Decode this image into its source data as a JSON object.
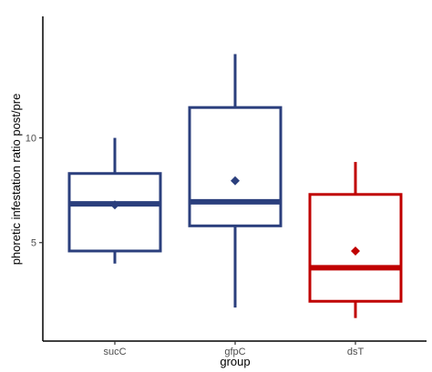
{
  "chart_data": {
    "type": "boxplot",
    "xlabel": "group",
    "ylabel": "phoretic infestation ratio post/pre",
    "categories": [
      "sucC",
      "gfpC",
      "dsT"
    ],
    "ylim": [
      0.3,
      15.8
    ],
    "yticks": [
      5,
      10
    ],
    "grid": false,
    "legend": "none",
    "boxes": [
      {
        "category": "sucC",
        "min": 4.0,
        "q1": 4.6,
        "median": 6.85,
        "q3": 8.3,
        "max": 10.0,
        "mean": 6.8,
        "color": "#2b3f7d"
      },
      {
        "category": "gfpC",
        "min": 1.9,
        "q1": 5.8,
        "median": 6.95,
        "q3": 11.45,
        "max": 14.0,
        "mean": 7.95,
        "color": "#2b3f7d"
      },
      {
        "category": "dsT",
        "min": 1.4,
        "q1": 2.2,
        "median": 3.8,
        "q3": 7.3,
        "max": 8.85,
        "mean": 4.6,
        "color": "#c00000"
      }
    ]
  }
}
